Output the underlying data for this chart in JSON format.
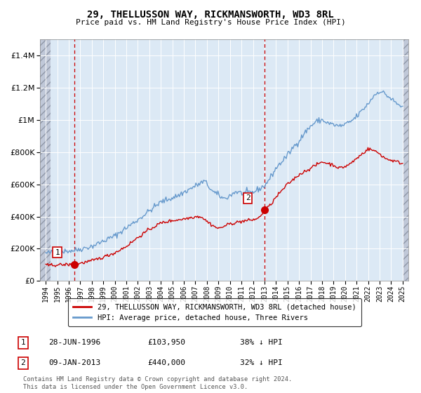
{
  "title": "29, THELLUSSON WAY, RICKMANSWORTH, WD3 8RL",
  "subtitle": "Price paid vs. HM Land Registry's House Price Index (HPI)",
  "purchase1": {
    "date_num": 1996.49,
    "price": 103950,
    "label": "1",
    "date_str": "28-JUN-1996",
    "price_str": "£103,950",
    "pct": "38% ↓ HPI"
  },
  "purchase2": {
    "date_num": 2013.03,
    "price": 440000,
    "label": "2",
    "date_str": "09-JAN-2013",
    "price_str": "£440,000",
    "pct": "32% ↓ HPI"
  },
  "legend_line1": "29, THELLUSSON WAY, RICKMANSWORTH, WD3 8RL (detached house)",
  "legend_line2": "HPI: Average price, detached house, Three Rivers",
  "footer": "Contains HM Land Registry data © Crown copyright and database right 2024.\nThis data is licensed under the Open Government Licence v3.0.",
  "red_color": "#cc0000",
  "blue_color": "#6699cc",
  "bg_color": "#dce9f5",
  "hatch_color": "#c0c8d8",
  "ylim": [
    0,
    1500000
  ],
  "xlim": [
    1993.5,
    2025.5
  ],
  "yticks": [
    0,
    200000,
    400000,
    600000,
    800000,
    1000000,
    1200000,
    1400000
  ],
  "xticks": [
    1994,
    1995,
    1996,
    1997,
    1998,
    1999,
    2000,
    2001,
    2002,
    2003,
    2004,
    2005,
    2006,
    2007,
    2008,
    2009,
    2010,
    2011,
    2012,
    2013,
    2014,
    2015,
    2016,
    2017,
    2018,
    2019,
    2020,
    2021,
    2022,
    2023,
    2024,
    2025
  ],
  "hpi_anchors": {
    "1994.0": 172000,
    "1995.0": 182000,
    "1996.5": 190000,
    "1998.0": 215000,
    "2000.0": 280000,
    "2002.0": 380000,
    "2004.0": 490000,
    "2005.5": 530000,
    "2007.0": 590000,
    "2007.8": 620000,
    "2008.5": 555000,
    "2009.5": 510000,
    "2010.0": 530000,
    "2010.5": 555000,
    "2011.0": 545000,
    "2012.0": 550000,
    "2013.0": 590000,
    "2013.5": 640000,
    "2014.0": 700000,
    "2015.0": 780000,
    "2015.5": 830000,
    "2016.0": 870000,
    "2016.5": 920000,
    "2017.0": 960000,
    "2017.5": 990000,
    "2018.0": 1000000,
    "2018.5": 980000,
    "2019.0": 970000,
    "2019.5": 960000,
    "2020.0": 970000,
    "2020.5": 990000,
    "2021.0": 1020000,
    "2021.5": 1060000,
    "2022.0": 1100000,
    "2022.5": 1150000,
    "2023.0": 1180000,
    "2023.5": 1160000,
    "2024.0": 1130000,
    "2024.5": 1100000,
    "2025.0": 1080000
  },
  "red_anchors": {
    "1994.0": 97000,
    "1995.0": 100000,
    "1996.4": 103000,
    "1996.5": 103950,
    "1997.0": 110000,
    "1998.0": 125000,
    "1999.0": 148000,
    "2000.0": 175000,
    "2001.0": 215000,
    "2002.0": 270000,
    "2003.0": 320000,
    "2004.0": 360000,
    "2005.0": 375000,
    "2006.0": 385000,
    "2007.0": 400000,
    "2007.5": 400000,
    "2008.0": 370000,
    "2008.5": 345000,
    "2009.0": 325000,
    "2009.5": 340000,
    "2010.0": 355000,
    "2011.0": 370000,
    "2012.0": 380000,
    "2012.5": 390000,
    "2013.03": 440000,
    "2013.5": 470000,
    "2014.0": 520000,
    "2015.0": 600000,
    "2016.0": 660000,
    "2017.0": 700000,
    "2017.5": 720000,
    "2018.0": 740000,
    "2018.5": 730000,
    "2019.0": 720000,
    "2019.5": 700000,
    "2020.0": 710000,
    "2020.5": 730000,
    "2021.0": 760000,
    "2021.5": 790000,
    "2022.0": 820000,
    "2022.5": 810000,
    "2023.0": 790000,
    "2023.5": 760000,
    "2024.0": 750000,
    "2024.5": 740000,
    "2025.0": 730000
  }
}
